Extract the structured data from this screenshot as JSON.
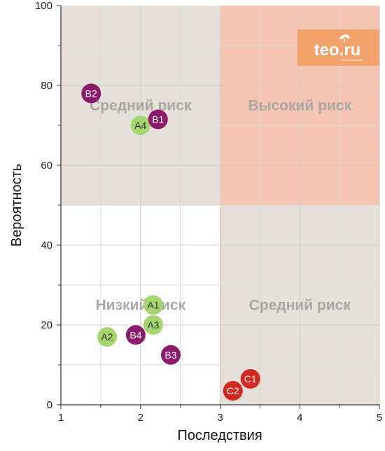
{
  "chart_data": {
    "type": "scatter",
    "xlabel": "Последствия",
    "ylabel": "Вероятность",
    "xlim": [
      1,
      5
    ],
    "ylim": [
      0,
      100
    ],
    "x_ticks": [
      1,
      2,
      3,
      4,
      5
    ],
    "y_ticks": [
      0,
      20,
      40,
      60,
      80,
      100
    ],
    "grid": true,
    "zones": [
      {
        "x": [
          1,
          3
        ],
        "y": [
          50,
          100
        ],
        "label": "Средний риск",
        "color": "#e5e1da"
      },
      {
        "x": [
          3,
          5
        ],
        "y": [
          50,
          100
        ],
        "label": "Высокий риск",
        "color": "#f6c4b2"
      },
      {
        "x": [
          1,
          3
        ],
        "y": [
          0,
          50
        ],
        "label": "Низкий риск",
        "color": "#ffffff"
      },
      {
        "x": [
          3,
          5
        ],
        "y": [
          0,
          50
        ],
        "label": "Средний риск",
        "color": "#e5e1da"
      }
    ],
    "points": [
      {
        "label": "B2",
        "x": 1.38,
        "y": 78,
        "color": "#8b1a6b",
        "text_color": "#ffffff"
      },
      {
        "label": "A4",
        "x": 2.0,
        "y": 70,
        "color": "#a5d66e",
        "text_color": "#333333"
      },
      {
        "label": "B1",
        "x": 2.22,
        "y": 71.5,
        "color": "#8b1a6b",
        "text_color": "#ffffff"
      },
      {
        "label": "A1",
        "x": 2.16,
        "y": 25,
        "color": "#a5d66e",
        "text_color": "#333333"
      },
      {
        "label": "A3",
        "x": 2.16,
        "y": 20,
        "color": "#a5d66e",
        "text_color": "#333333"
      },
      {
        "label": "A2",
        "x": 1.58,
        "y": 17,
        "color": "#a5d66e",
        "text_color": "#333333"
      },
      {
        "label": "B4",
        "x": 1.94,
        "y": 17.5,
        "color": "#8b1a6b",
        "text_color": "#ffffff"
      },
      {
        "label": "B3",
        "x": 2.38,
        "y": 12.5,
        "color": "#8b1a6b",
        "text_color": "#ffffff"
      },
      {
        "label": "C1",
        "x": 3.38,
        "y": 6.5,
        "color": "#d42a1e",
        "text_color": "#ffffff"
      },
      {
        "label": "C2",
        "x": 3.16,
        "y": 3.5,
        "color": "#d42a1e",
        "text_color": "#ffffff"
      }
    ]
  },
  "logo": {
    "text": "teo.ru",
    "tagline": "Бизнес-решения",
    "color": "#f3a16b"
  }
}
